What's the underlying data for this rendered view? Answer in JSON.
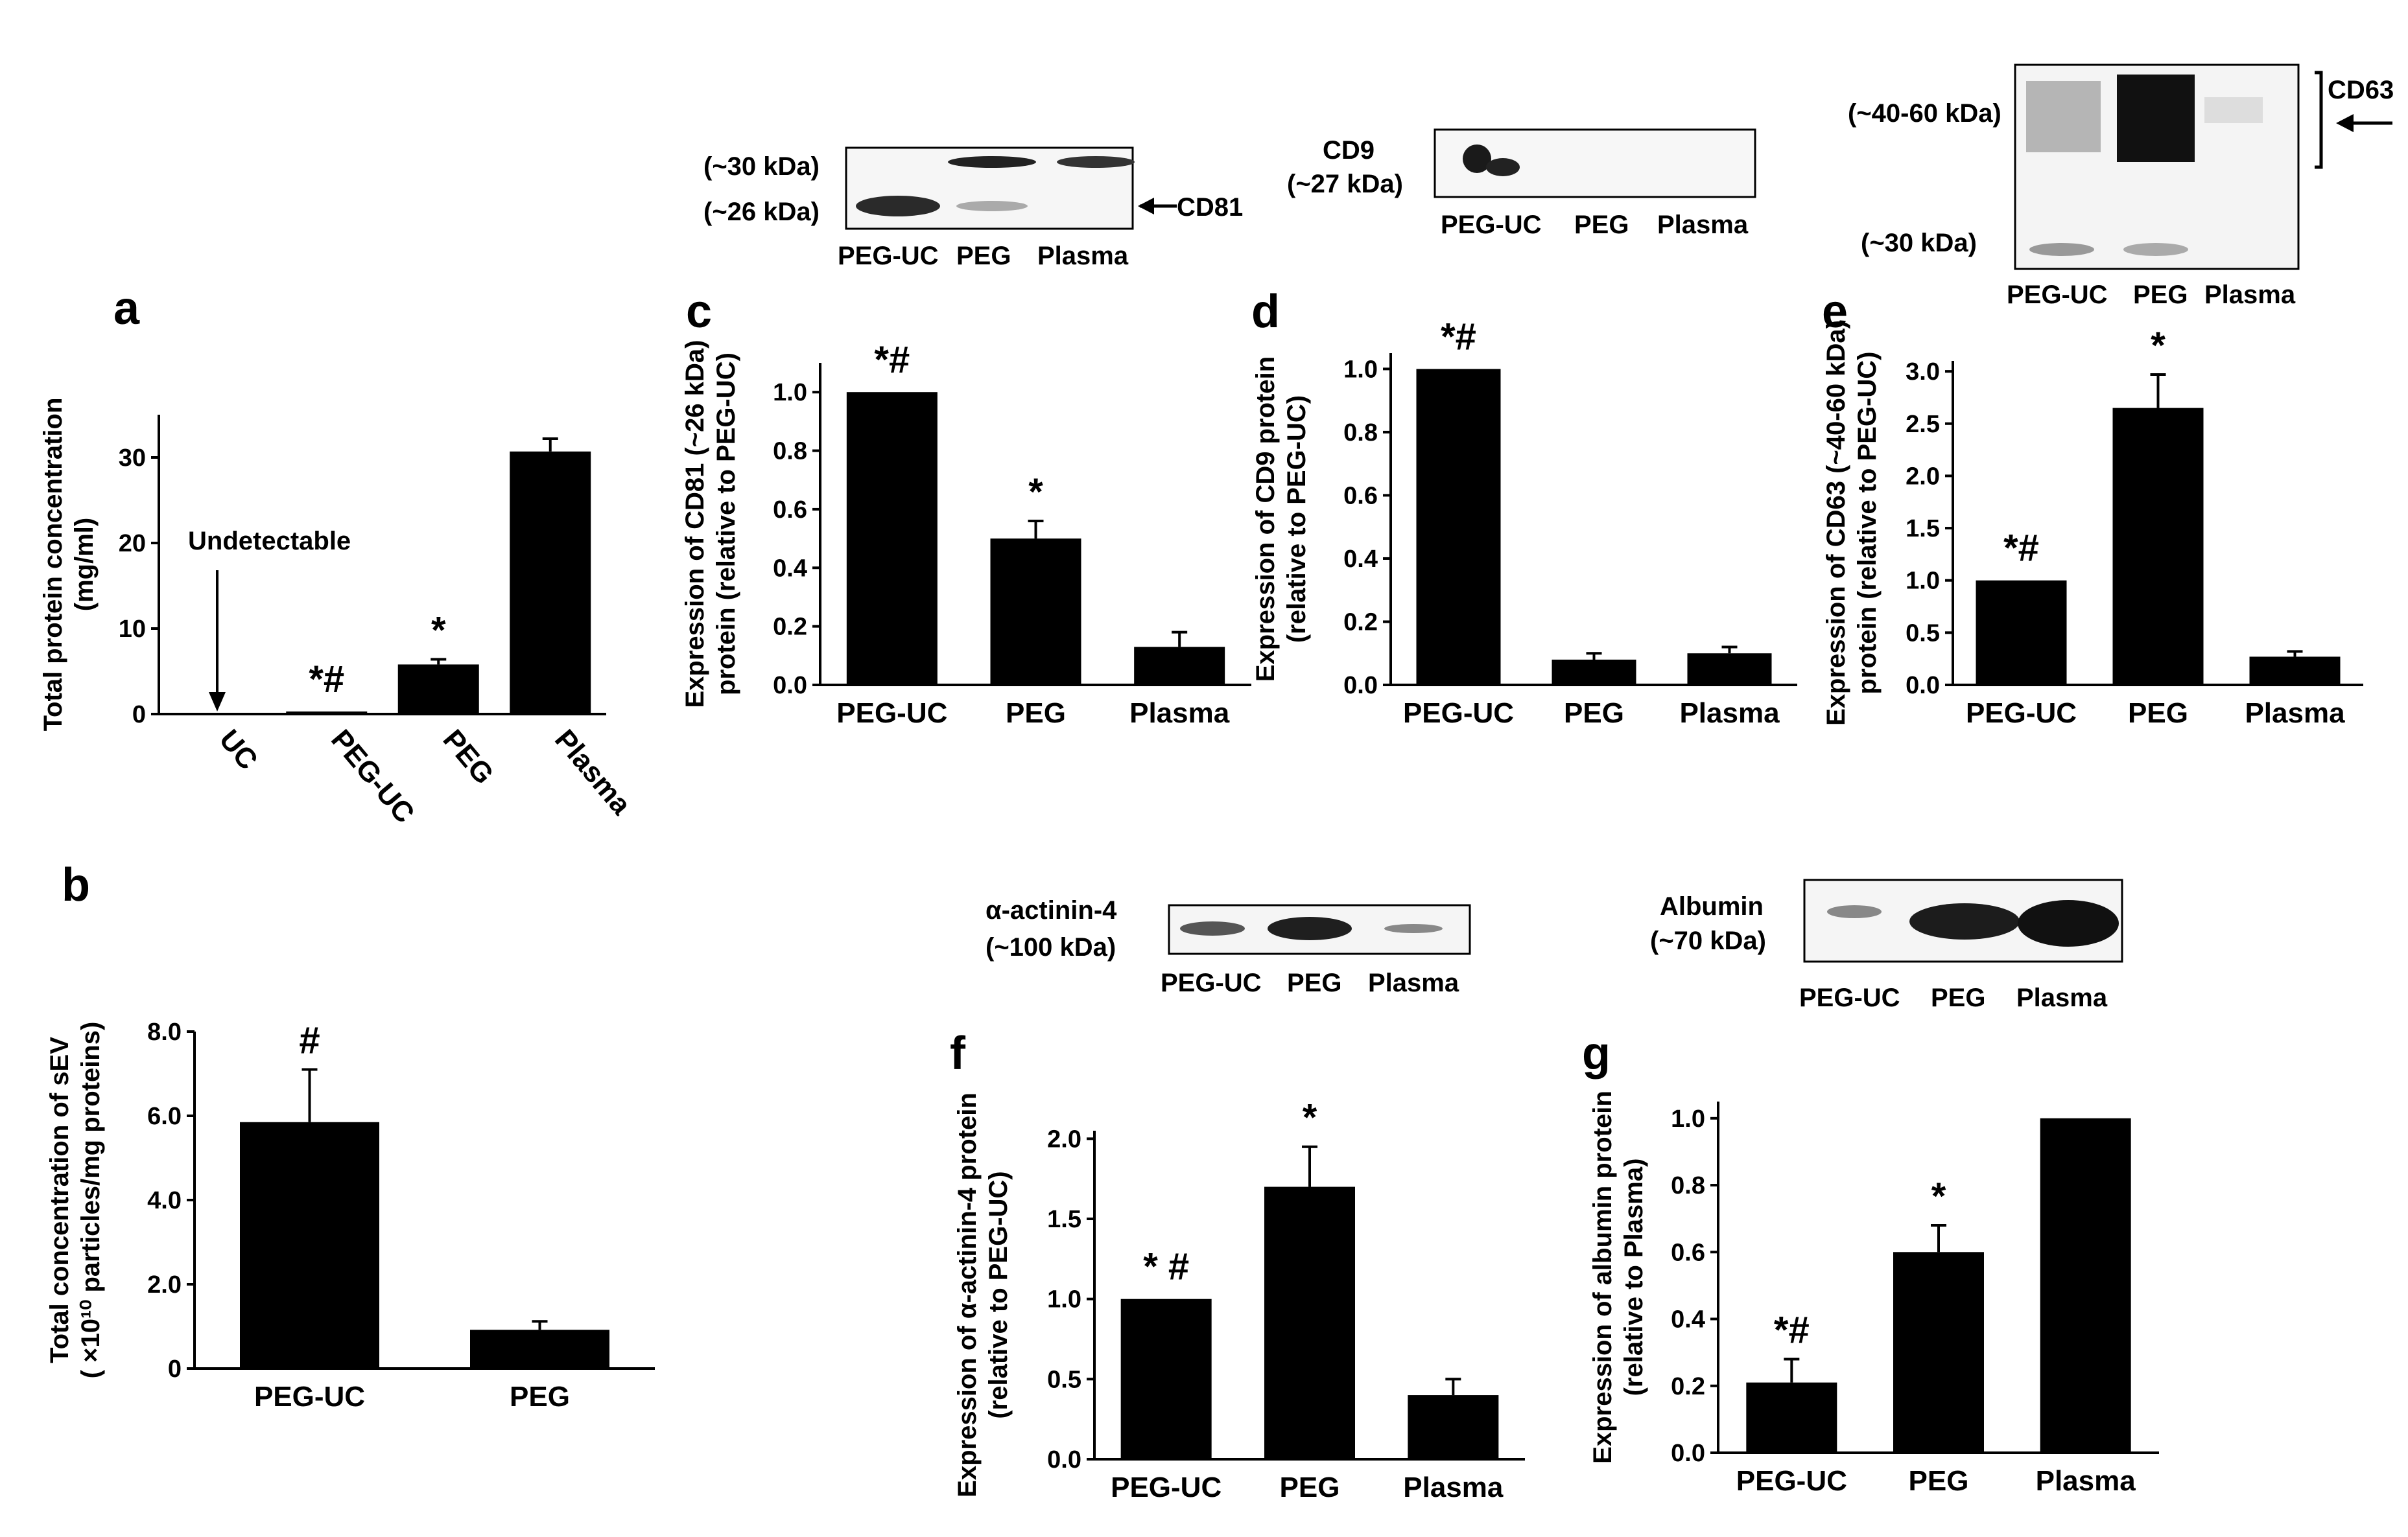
{
  "chart_data": [
    {
      "id": "a",
      "type": "bar",
      "panel_label": "a",
      "categories": [
        "UC",
        "PEG-UC",
        "PEG",
        "Plasma"
      ],
      "values": [
        0,
        0.3,
        5.8,
        30.7
      ],
      "errors": [
        0,
        0,
        0.6,
        1.5
      ],
      "ylim": [
        0,
        35
      ],
      "yticks": [
        "0",
        "10",
        "20",
        "30"
      ],
      "ylabel": [
        "Total protein concentration",
        "(mg/ml)"
      ],
      "sig": [
        "",
        "*#",
        "*",
        ""
      ],
      "annotation": "Undetectable"
    },
    {
      "id": "b",
      "type": "bar",
      "panel_label": "b",
      "categories": [
        "PEG-UC",
        "PEG"
      ],
      "values": [
        5.85,
        0.92
      ],
      "errors": [
        1.25,
        0.2
      ],
      "ylim": [
        0,
        8.0
      ],
      "yticks": [
        "0",
        "2.0",
        "4.0",
        "6.0",
        "8.0"
      ],
      "ylabel": [
        "Total concentration of sEV",
        "( ×10¹⁰ particles/mg proteins)"
      ],
      "sig": [
        "#",
        ""
      ]
    },
    {
      "id": "c",
      "type": "bar",
      "panel_label": "c",
      "categories": [
        "PEG-UC",
        "PEG",
        "Plasma"
      ],
      "values": [
        1.0,
        0.5,
        0.13
      ],
      "errors": [
        0,
        0.06,
        0.05
      ],
      "ylim": [
        0,
        1.1
      ],
      "yticks": [
        "0.0",
        "0.2",
        "0.4",
        "0.6",
        "0.8",
        "1.0"
      ],
      "ylabel": [
        "Expression of CD81 (~26 kDa)",
        "protein (relative to PEG-UC)"
      ],
      "sig": [
        "*#",
        "*",
        ""
      ]
    },
    {
      "id": "d",
      "type": "bar",
      "panel_label": "d",
      "categories": [
        "PEG-UC",
        "PEG",
        "Plasma"
      ],
      "values": [
        1.0,
        0.08,
        0.1
      ],
      "errors": [
        0,
        0.02,
        0.02
      ],
      "ylim": [
        0,
        1.05
      ],
      "yticks": [
        "0.0",
        "0.2",
        "0.4",
        "0.6",
        "0.8",
        "1.0"
      ],
      "ylabel": [
        "Expression of CD9 protein",
        "(relative to PEG-UC)"
      ],
      "sig": [
        "*#",
        "",
        ""
      ]
    },
    {
      "id": "e",
      "type": "bar",
      "panel_label": "e",
      "categories": [
        "PEG-UC",
        "PEG",
        "Plasma"
      ],
      "values": [
        1.0,
        2.65,
        0.27
      ],
      "errors": [
        0,
        0.32,
        0.05
      ],
      "ylim": [
        0,
        3.1
      ],
      "yticks": [
        "0.0",
        "0.5",
        "1.0",
        "1.5",
        "2.0",
        "2.5",
        "3.0"
      ],
      "ylabel": [
        "Expression of CD63 (~40-60 kDa)",
        "protein (relative to PEG-UC)"
      ],
      "sig": [
        "*#",
        "*",
        ""
      ]
    },
    {
      "id": "f",
      "type": "bar",
      "panel_label": "f",
      "categories": [
        "PEG-UC",
        "PEG",
        "Plasma"
      ],
      "values": [
        1.0,
        1.7,
        0.4
      ],
      "errors": [
        0,
        0.25,
        0.1
      ],
      "ylim": [
        0,
        2.05
      ],
      "yticks": [
        "0.0",
        "0.5",
        "1.0",
        "1.5",
        "2.0"
      ],
      "ylabel": [
        "Expression of α-actinin-4 protein",
        "(relative to PEG-UC)"
      ],
      "sig": [
        "*  #",
        "*",
        ""
      ]
    },
    {
      "id": "g",
      "type": "bar",
      "panel_label": "g",
      "categories": [
        "PEG-UC",
        "PEG",
        "Plasma"
      ],
      "values": [
        0.21,
        0.6,
        1.0
      ],
      "errors": [
        0.07,
        0.08,
        0
      ],
      "ylim": [
        0,
        1.05
      ],
      "yticks": [
        "0.0",
        "0.2",
        "0.4",
        "0.6",
        "0.8",
        "1.0"
      ],
      "ylabel": [
        "Expression of albumin protein",
        "(relative to Plasma)"
      ],
      "sig": [
        "*#",
        "*",
        ""
      ]
    }
  ],
  "blots": {
    "c": {
      "lanes": [
        "PEG-UC",
        "PEG",
        "Plasma"
      ],
      "size_labels": [
        "(~30 kDa)",
        "(~26 kDa)"
      ],
      "marker": "CD81"
    },
    "d": {
      "lanes": [
        "PEG-UC",
        "PEG",
        "Plasma"
      ],
      "name": "CD9",
      "size": "(~27 kDa)"
    },
    "e": {
      "lanes": [
        "PEG-UC",
        "PEG",
        "Plasma"
      ],
      "size_labels": [
        "(~40-60 kDa)",
        "(~30 kDa)"
      ],
      "marker": "CD63"
    },
    "f": {
      "lanes": [
        "PEG-UC",
        "PEG",
        "Plasma"
      ],
      "name": "α-actinin-4",
      "size": "(~100 kDa)"
    },
    "g": {
      "lanes": [
        "PEG-UC",
        "PEG",
        "Plasma"
      ],
      "name": "Albumin",
      "size": "(~70 kDa)"
    }
  },
  "colors": {
    "bar": "#000000",
    "axis": "#000000",
    "blot_dark": "#1a1a1a"
  }
}
